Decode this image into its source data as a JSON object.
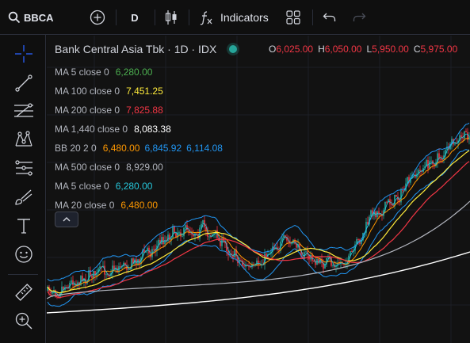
{
  "toolbar": {
    "symbol": "BBCA",
    "interval": "D",
    "indicators_label": "Indicators"
  },
  "chart_header": {
    "title": "Bank Central Asia Tbk · 1D · IDX",
    "ohlc": [
      {
        "key": "O",
        "value": "6,025.00"
      },
      {
        "key": "H",
        "value": "6,050.00"
      },
      {
        "key": "L",
        "value": "5,950.00"
      },
      {
        "key": "C",
        "value": "5,975.00"
      }
    ]
  },
  "indicators": [
    {
      "label": "MA 5 close 0",
      "values": [
        "6,280.00"
      ],
      "colors": [
        "#4caf50"
      ]
    },
    {
      "label": "MA 100 close 0",
      "values": [
        "7,451.25"
      ],
      "colors": [
        "#ffeb3b"
      ]
    },
    {
      "label": "MA 200 close 0",
      "values": [
        "7,825.88"
      ],
      "colors": [
        "#f23645"
      ]
    },
    {
      "label": "MA 1,440 close 0",
      "values": [
        "8,083.38"
      ],
      "colors": [
        "#ffffff"
      ]
    },
    {
      "label": "BB 20 2 0",
      "values": [
        "6,480.00",
        "6,845.92",
        "6,114.08"
      ],
      "colors": [
        "#ff9800",
        "#2196f3",
        "#2196f3"
      ]
    },
    {
      "label": "MA 500 close 0",
      "values": [
        "8,929.00"
      ],
      "colors": [
        "#b2b5be"
      ]
    },
    {
      "label": "MA 5 close 0",
      "values": [
        "6,280.00"
      ],
      "colors": [
        "#26c6da"
      ]
    },
    {
      "label": "MA 20 close 0",
      "values": [
        "6,480.00"
      ],
      "colors": [
        "#ff9800"
      ]
    }
  ],
  "left_tools": [
    "crosshair-icon",
    "trend-line-icon",
    "fib-retracement-icon",
    "pattern-icon",
    "prediction-icon",
    "brush-icon",
    "text-icon",
    "emoji-icon",
    "ruler-icon",
    "zoom-in-icon"
  ],
  "colors": {
    "up": "#26a69a",
    "down": "#f23645",
    "bb": "#2196f3",
    "ma100": "#ffeb3b",
    "ma200": "#f23645",
    "ma500": "#b2b5be",
    "ma1440": "#ffffff"
  }
}
